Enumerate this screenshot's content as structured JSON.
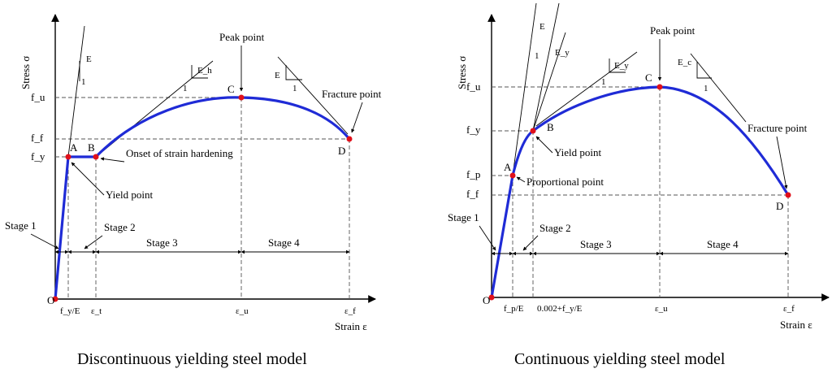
{
  "left": {
    "caption": "Discontinuous yielding steel model",
    "y_axis_label": "Stress σ",
    "x_axis_label": "Strain ε",
    "y_ticks": [
      "f_u",
      "f_f",
      "f_y"
    ],
    "x_ticks": [
      "f_y/E",
      "ε_t",
      "ε_u",
      "ε_f"
    ],
    "points": [
      "O",
      "A",
      "B",
      "C",
      "D"
    ],
    "annotations": {
      "peak": "Peak point",
      "fracture": "Fracture point",
      "yield": "Yield point",
      "hardening": "Onset of strain hardening",
      "modulus_e": "E",
      "one": "1",
      "e_h": "E_h",
      "e": "E"
    },
    "stages": [
      "Stage 1",
      "Stage 2",
      "Stage 3",
      "Stage 4"
    ]
  },
  "right": {
    "caption": "Continuous yielding steel model",
    "y_axis_label": "Stress σ",
    "x_axis_label": "Strain ε",
    "y_ticks": [
      "f_u",
      "f_y",
      "f_p",
      "f_f"
    ],
    "x_ticks": [
      "f_p/E",
      "0.002+f_y/E",
      "ε_u",
      "ε_f"
    ],
    "points": [
      "O",
      "A",
      "B",
      "C",
      "D"
    ],
    "annotations": {
      "peak": "Peak point",
      "fracture": "Fracture point",
      "yield": "Yield point",
      "proportional": "Proportional point",
      "e": "E",
      "e_y": "E_y",
      "one": "1",
      "e_c": "E_c"
    },
    "stages": [
      "Stage 1",
      "Stage 2",
      "Stage 3",
      "Stage 4"
    ]
  }
}
